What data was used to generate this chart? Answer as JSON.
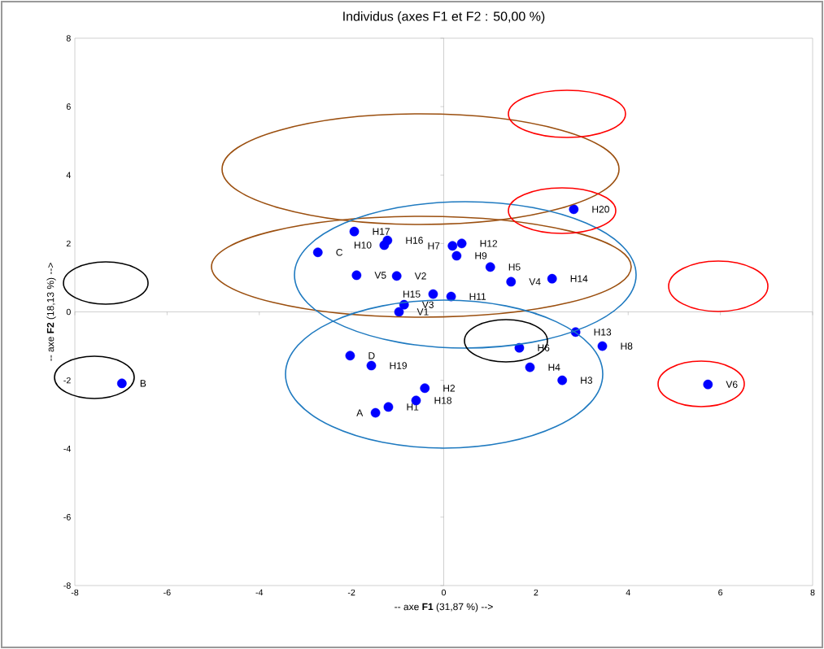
{
  "chart_data": {
    "type": "scatter",
    "title": "Individus (axes F1 et F2 : 50,00 %)",
    "xlabel": "-- axe **F1** (31,87 %) -->",
    "ylabel": "-- axe **F2** (18,13 %) -->",
    "x": [
      2.82,
      -1.94,
      -1.22,
      -1.29,
      -2.73,
      0.19,
      0.39,
      0.28,
      1.01,
      -1.89,
      -1.02,
      1.46,
      2.35,
      -0.23,
      0.16,
      -0.86,
      -0.97,
      2.86,
      3.44,
      1.64,
      1.87,
      2.57,
      5.73,
      -2.03,
      -1.57,
      -0.41,
      -0.6,
      -1.2,
      -1.48,
      -6.98
    ],
    "series": [
      {
        "color": "#0000ff",
        "values": [
          3.0,
          2.35,
          2.09,
          1.95,
          1.74,
          1.93,
          2.0,
          1.64,
          1.31,
          1.07,
          1.05,
          0.88,
          0.97,
          0.52,
          0.45,
          0.21,
          0.0,
          -0.59,
          -1.0,
          -1.05,
          -1.62,
          -2.0,
          -2.12,
          -1.28,
          -1.57,
          -2.23,
          -2.59,
          -2.78,
          -2.95,
          -2.09
        ]
      }
    ],
    "marker": "circle",
    "xlim": [
      -8,
      8
    ],
    "ylim": [
      -8,
      8
    ],
    "xticks": [
      -8,
      -6,
      -4,
      -2,
      0,
      2,
      4,
      6,
      8
    ],
    "yticks": [
      -8,
      -6,
      -4,
      -2,
      0,
      2,
      4,
      6,
      8
    ],
    "annotations": [
      {
        "text": "H20",
        "x": 2.82,
        "y": 3.0
      },
      {
        "text": "H17",
        "x": -1.94,
        "y": 2.35
      },
      {
        "text": "H16",
        "x": -1.22,
        "y": 2.09
      },
      {
        "text": "H10",
        "x": -1.29,
        "y": 1.95
      },
      {
        "text": "C",
        "x": -2.73,
        "y": 1.74
      },
      {
        "text": "H7",
        "x": 0.19,
        "y": 1.93
      },
      {
        "text": "H12",
        "x": 0.39,
        "y": 2.0
      },
      {
        "text": "H9",
        "x": 0.28,
        "y": 1.64
      },
      {
        "text": "H5",
        "x": 1.01,
        "y": 1.31
      },
      {
        "text": "V5",
        "x": -1.89,
        "y": 1.07
      },
      {
        "text": "V2",
        "x": -1.02,
        "y": 1.05
      },
      {
        "text": "V4",
        "x": 1.46,
        "y": 0.88
      },
      {
        "text": "H14",
        "x": 2.35,
        "y": 0.97
      },
      {
        "text": "H15",
        "x": -0.23,
        "y": 0.52
      },
      {
        "text": "H11",
        "x": 0.16,
        "y": 0.45
      },
      {
        "text": "V3",
        "x": -0.86,
        "y": 0.21
      },
      {
        "text": "V1",
        "x": -0.97,
        "y": 0.0
      },
      {
        "text": "H13",
        "x": 2.86,
        "y": -0.59
      },
      {
        "text": "H8",
        "x": 3.44,
        "y": -1.0
      },
      {
        "text": "H6",
        "x": 1.64,
        "y": -1.05
      },
      {
        "text": "H4",
        "x": 1.87,
        "y": -1.62
      },
      {
        "text": "H3",
        "x": 2.57,
        "y": -2.0
      },
      {
        "text": "V6",
        "x": 5.73,
        "y": -2.12
      },
      {
        "text": "D",
        "x": -2.03,
        "y": -1.28
      },
      {
        "text": "H19",
        "x": -1.57,
        "y": -1.57
      },
      {
        "text": "H2",
        "x": -0.41,
        "y": -2.23
      },
      {
        "text": "H18",
        "x": -0.6,
        "y": -2.59
      },
      {
        "text": "H1",
        "x": -1.2,
        "y": -2.78
      },
      {
        "text": "A",
        "x": -1.48,
        "y": -2.95
      },
      {
        "text": "B",
        "x": -6.98,
        "y": -2.09
      }
    ]
  }
}
